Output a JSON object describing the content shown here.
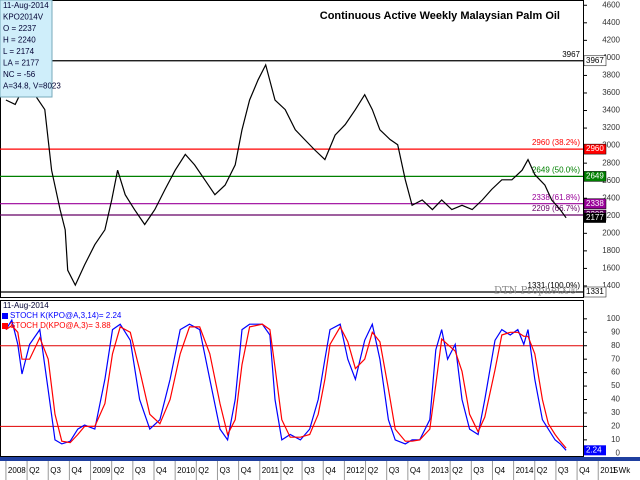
{
  "chart_data": [
    {
      "type": "line",
      "title": "Continuous Active Weekly Malaysian Palm Oil",
      "watermark": "DTN ProphetX®",
      "info": [
        "11-Aug-2014",
        "KPO2014V",
        "O = 2237",
        "H = 2240",
        "L = 2174",
        "LA = 2177",
        "NC = -56",
        "A=34.8, V=8023"
      ],
      "color": "#000000",
      "x": [
        2008.0,
        2008.11,
        2008.22,
        2008.34,
        2008.46,
        2008.54,
        2008.64,
        2008.7,
        2008.73,
        2008.82,
        2008.93,
        2009.05,
        2009.17,
        2009.25,
        2009.32,
        2009.41,
        2009.52,
        2009.64,
        2009.76,
        2009.88,
        2010.0,
        2010.12,
        2010.23,
        2010.35,
        2010.47,
        2010.59,
        2010.71,
        2010.79,
        2010.88,
        2010.98,
        2011.07,
        2011.18,
        2011.3,
        2011.42,
        2011.53,
        2011.65,
        2011.77,
        2011.89,
        2012.01,
        2012.13,
        2012.24,
        2012.33,
        2012.42,
        2012.54,
        2012.63,
        2012.72,
        2012.8,
        2012.92,
        2013.04,
        2013.15,
        2013.27,
        2013.39,
        2013.51,
        2013.63,
        2013.74,
        2013.86,
        2013.98,
        2014.1,
        2014.17,
        2014.25,
        2014.37,
        2014.45,
        2014.55,
        2014.62
      ],
      "values": [
        3520,
        3470,
        3690,
        3580,
        3410,
        2720,
        2270,
        2040,
        1580,
        1410,
        1640,
        1870,
        2040,
        2380,
        2720,
        2440,
        2270,
        2100,
        2270,
        2500,
        2720,
        2900,
        2780,
        2610,
        2440,
        2550,
        2780,
        3180,
        3520,
        3750,
        3920,
        3520,
        3410,
        3180,
        3070,
        2950,
        2840,
        3120,
        3240,
        3410,
        3580,
        3410,
        3180,
        3070,
        3010,
        2610,
        2320,
        2380,
        2270,
        2380,
        2270,
        2320,
        2270,
        2380,
        2500,
        2610,
        2610,
        2720,
        2840,
        2670,
        2550,
        2380,
        2270,
        2177
      ],
      "last_value": 2177,
      "levels": [
        {
          "value": 3967,
          "label": "3967",
          "color": "#000000"
        },
        {
          "value": 2960,
          "label": "2960 (38.2%)",
          "color": "#ff0000"
        },
        {
          "value": 2649,
          "label": "2649 (50.0%)",
          "color": "#008000"
        },
        {
          "value": 2338,
          "label": "2338 (61.8%)",
          "color": "#990099"
        },
        {
          "value": 2209,
          "label": "2209 (66.7%)",
          "color": "#660066"
        },
        {
          "value": 1331,
          "label": "1331 (100.0%)",
          "color": "#000000"
        }
      ],
      "xlim": [
        2007.93,
        2014.82
      ],
      "ylim": [
        1274,
        4660
      ],
      "yticks": [
        1400,
        1600,
        1800,
        2000,
        2200,
        2400,
        2600,
        2800,
        3000,
        3200,
        3400,
        3600,
        3800,
        4000,
        4200,
        4400,
        4600
      ],
      "xticks": [
        {
          "value": 2008,
          "label": "2008"
        },
        {
          "value": 2008.25,
          "label": "Q2"
        },
        {
          "value": 2008.5,
          "label": "Q3"
        },
        {
          "value": 2008.75,
          "label": "Q4"
        },
        {
          "value": 2009,
          "label": "2009"
        },
        {
          "value": 2009.25,
          "label": "Q2"
        },
        {
          "value": 2009.5,
          "label": "Q3"
        },
        {
          "value": 2009.75,
          "label": "Q4"
        },
        {
          "value": 2010,
          "label": "2010"
        },
        {
          "value": 2010.25,
          "label": "Q2"
        },
        {
          "value": 2010.5,
          "label": "Q3"
        },
        {
          "value": 2010.75,
          "label": "Q4"
        },
        {
          "value": 2011,
          "label": "2011"
        },
        {
          "value": 2011.25,
          "label": "Q2"
        },
        {
          "value": 2011.5,
          "label": "Q3"
        },
        {
          "value": 2011.75,
          "label": "Q4"
        },
        {
          "value": 2012,
          "label": "2012"
        },
        {
          "value": 2012.25,
          "label": "Q2"
        },
        {
          "value": 2012.5,
          "label": "Q3"
        },
        {
          "value": 2012.75,
          "label": "Q4"
        },
        {
          "value": 2013,
          "label": "2013"
        },
        {
          "value": 2013.25,
          "label": "Q2"
        },
        {
          "value": 2013.5,
          "label": "Q3"
        },
        {
          "value": 2013.75,
          "label": "Q4"
        },
        {
          "value": 2014,
          "label": "2014"
        },
        {
          "value": 2014.25,
          "label": "Q2"
        },
        {
          "value": 2014.5,
          "label": "Q3"
        },
        {
          "value": 2014.75,
          "label": "Q4"
        },
        {
          "value": 2015,
          "label": "2015"
        }
      ],
      "period": "1 Wk"
    },
    {
      "type": "line",
      "date": "11-Aug-2014",
      "x": [
        2008.0,
        2008.07,
        2008.14,
        2008.19,
        2008.28,
        2008.4,
        2008.5,
        2008.58,
        2008.66,
        2008.76,
        2008.85,
        2008.93,
        2009.05,
        2009.17,
        2009.26,
        2009.35,
        2009.47,
        2009.58,
        2009.7,
        2009.82,
        2009.94,
        2010.06,
        2010.17,
        2010.29,
        2010.41,
        2010.53,
        2010.62,
        2010.71,
        2010.79,
        2010.88,
        2011.03,
        2011.12,
        2011.18,
        2011.26,
        2011.36,
        2011.48,
        2011.59,
        2011.69,
        2011.77,
        2011.83,
        2011.95,
        2012.04,
        2012.13,
        2012.24,
        2012.33,
        2012.42,
        2012.52,
        2012.6,
        2012.72,
        2012.8,
        2012.89,
        2013.01,
        2013.08,
        2013.15,
        2013.22,
        2013.31,
        2013.39,
        2013.48,
        2013.58,
        2013.66,
        2013.78,
        2013.86,
        2013.96,
        2014.05,
        2014.12,
        2014.17,
        2014.25,
        2014.34,
        2014.41,
        2014.49,
        2014.55,
        2014.62
      ],
      "series": [
        {
          "name": "STOCH K(KPO@A,3,14)= 2.24",
          "color": "#0000ff",
          "values": [
            92,
            99,
            81,
            59,
            81,
            92,
            47,
            10,
            7,
            9,
            18,
            21,
            18,
            55,
            92,
            96,
            84,
            40,
            18,
            25,
            55,
            92,
            96,
            92,
            55,
            18,
            10,
            40,
            92,
            96,
            96,
            88,
            40,
            10,
            14,
            10,
            18,
            40,
            70,
            92,
            96,
            70,
            55,
            84,
            96,
            70,
            25,
            10,
            7,
            10,
            10,
            25,
            77,
            92,
            70,
            81,
            40,
            18,
            14,
            40,
            84,
            92,
            88,
            92,
            81,
            92,
            55,
            25,
            18,
            10,
            7,
            2.24
          ]
        },
        {
          "name": "STOCH D(KPO@A,3)= 3.88",
          "color": "#ff0000",
          "values": [
            92,
            95,
            90,
            70,
            70,
            86,
            70,
            29,
            9,
            8,
            14,
            20,
            20,
            37,
            74,
            94,
            90,
            62,
            29,
            22,
            40,
            74,
            94,
            94,
            74,
            37,
            14,
            25,
            66,
            94,
            96,
            92,
            64,
            25,
            12,
            12,
            14,
            29,
            55,
            81,
            94,
            83,
            63,
            70,
            90,
            83,
            48,
            18,
            9,
            9,
            10,
            18,
            51,
            85,
            81,
            76,
            61,
            29,
            16,
            27,
            62,
            88,
            90,
            90,
            87,
            87,
            74,
            40,
            22,
            14,
            9,
            3.88
          ]
        }
      ],
      "reference_lines": [
        {
          "value": 80,
          "color": "#e00000"
        },
        {
          "value": 20,
          "color": "#e00000"
        }
      ],
      "xlim": [
        2007.93,
        2014.82
      ],
      "ylim": [
        -2,
        114
      ],
      "yticks": [
        0,
        10,
        20,
        30,
        40,
        50,
        60,
        70,
        80,
        90,
        100
      ]
    }
  ]
}
